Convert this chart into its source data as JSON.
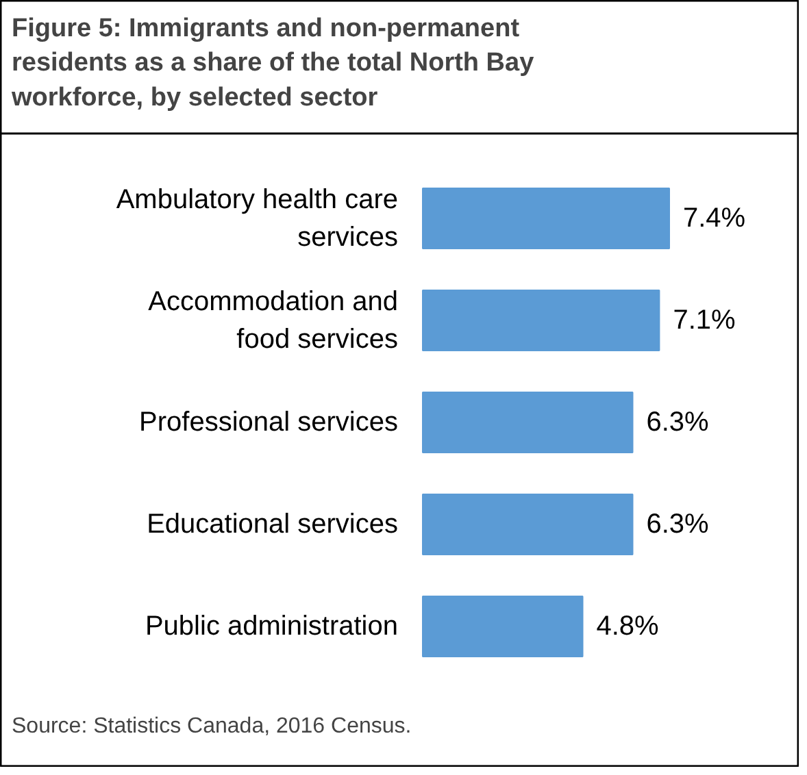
{
  "chart_data": {
    "type": "bar",
    "orientation": "horizontal",
    "title": "Figure 5: Immigrants and non-permanent residents as a share of the total North Bay workforce, by selected sector",
    "categories": [
      "Ambulatory health care\nservices",
      "Accommodation and\nfood services",
      "Professional services",
      "Educational services",
      "Public administration"
    ],
    "values": [
      7.4,
      7.1,
      6.3,
      6.3,
      4.8
    ],
    "value_labels": [
      "7.4%",
      "7.1%",
      "6.3%",
      "6.3%",
      "4.8%"
    ],
    "color": "#5b9bd5",
    "annotations": [
      "Source: Statistics Canada, 2016 Census."
    ]
  }
}
